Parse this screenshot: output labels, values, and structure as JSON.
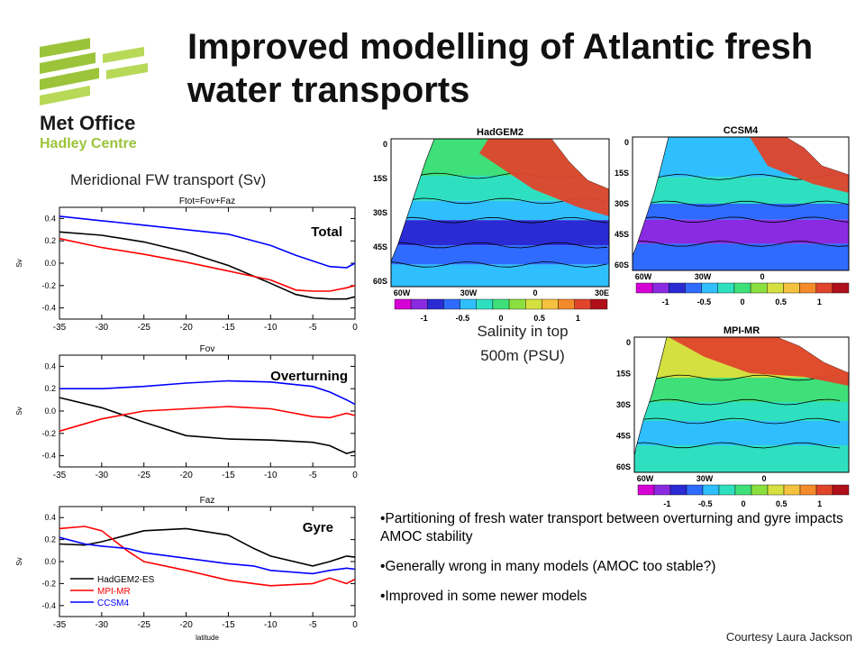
{
  "title": "Improved modelling of Atlantic fresh water transports",
  "logo": {
    "line1": "Met Office",
    "line2": "Hadley Centre",
    "colors": [
      "#9bc43a",
      "#b7d957"
    ]
  },
  "fw_caption": "Meridional FW transport (Sv)",
  "salinity_caption_1": "Salinity in top",
  "salinity_caption_2": "500m (PSU)",
  "bullets": [
    "•Partitioning of fresh water transport between overturning and gyre impacts AMOC stability",
    "•Generally wrong in many models (AMOC too stable?)",
    "•Improved in some newer models"
  ],
  "courtesy": "Courtesy Laura Jackson",
  "chart_data": [
    {
      "type": "line",
      "title": "Ftot=Fov+Faz",
      "panel_label": "Total",
      "ylabel": "Sv",
      "xlabel": "",
      "xlim": [
        -35,
        0
      ],
      "ylim": [
        -0.5,
        0.5
      ],
      "xticks": [
        -35,
        -30,
        -25,
        -20,
        -15,
        -10,
        -5,
        0
      ],
      "yticks": [
        -0.4,
        -0.2,
        0.0,
        0.2,
        0.4
      ],
      "ytick_labels": [
        "-0.4",
        "-0.2",
        "0.0",
        "0.2",
        "0.4"
      ],
      "x": [
        -35,
        -30,
        -25,
        -20,
        -15,
        -10,
        -7,
        -5,
        -3,
        -1,
        0
      ],
      "series": [
        {
          "name": "HadGEM2-ES",
          "color": "#000000",
          "values": [
            0.28,
            0.25,
            0.19,
            0.1,
            -0.02,
            -0.18,
            -0.28,
            -0.31,
            -0.32,
            -0.32,
            -0.3
          ]
        },
        {
          "name": "MPI-MR",
          "color": "#ff0000",
          "values": [
            0.22,
            0.14,
            0.08,
            0.01,
            -0.07,
            -0.15,
            -0.24,
            -0.25,
            -0.25,
            -0.22,
            -0.2
          ]
        },
        {
          "name": "CCSM4",
          "color": "#0000ff",
          "values": [
            0.42,
            0.38,
            0.34,
            0.3,
            0.26,
            0.16,
            0.07,
            0.02,
            -0.03,
            -0.04,
            0.0
          ]
        }
      ]
    },
    {
      "type": "line",
      "title": "Fov",
      "panel_label": "Overturning",
      "ylabel": "Sv",
      "xlabel": "",
      "xlim": [
        -35,
        0
      ],
      "ylim": [
        -0.5,
        0.5
      ],
      "xticks": [
        -35,
        -30,
        -25,
        -20,
        -15,
        -10,
        -5,
        0
      ],
      "yticks": [
        -0.4,
        -0.2,
        0.0,
        0.2,
        0.4
      ],
      "ytick_labels": [
        "-0.4",
        "-0.2",
        "0.0",
        "0.2",
        "0.4"
      ],
      "x": [
        -35,
        -30,
        -25,
        -20,
        -15,
        -10,
        -5,
        -3,
        -1,
        0
      ],
      "series": [
        {
          "name": "HadGEM2-ES",
          "color": "#000000",
          "values": [
            0.12,
            0.03,
            -0.1,
            -0.22,
            -0.25,
            -0.26,
            -0.28,
            -0.31,
            -0.38,
            -0.36
          ]
        },
        {
          "name": "MPI-MR",
          "color": "#ff0000",
          "values": [
            -0.18,
            -0.07,
            0.0,
            0.02,
            0.04,
            0.02,
            -0.05,
            -0.06,
            -0.02,
            -0.04
          ]
        },
        {
          "name": "CCSM4",
          "color": "#0000ff",
          "values": [
            0.2,
            0.2,
            0.22,
            0.25,
            0.27,
            0.26,
            0.22,
            0.17,
            0.1,
            0.06
          ]
        }
      ]
    },
    {
      "type": "line",
      "title": "Faz",
      "panel_label": "Gyre",
      "ylabel": "Sv",
      "xlabel": "latitude",
      "xlim": [
        -35,
        0
      ],
      "ylim": [
        -0.5,
        0.5
      ],
      "xticks": [
        -35,
        -30,
        -25,
        -20,
        -15,
        -10,
        -5,
        0
      ],
      "yticks": [
        -0.4,
        -0.2,
        0.0,
        0.2,
        0.4
      ],
      "ytick_labels": [
        "-0.4",
        "-0.2",
        "0.0",
        "0.2",
        "0.4"
      ],
      "x": [
        -35,
        -32,
        -30,
        -27,
        -25,
        -20,
        -15,
        -12,
        -10,
        -5,
        -3,
        -1,
        0
      ],
      "series": [
        {
          "name": "HadGEM2-ES",
          "color": "#000000",
          "values": [
            0.16,
            0.15,
            0.18,
            0.24,
            0.28,
            0.3,
            0.24,
            0.12,
            0.05,
            -0.04,
            0.0,
            0.05,
            0.04
          ]
        },
        {
          "name": "MPI-MR",
          "color": "#ff0000",
          "values": [
            0.3,
            0.32,
            0.28,
            0.1,
            0.0,
            -0.08,
            -0.17,
            -0.2,
            -0.22,
            -0.2,
            -0.15,
            -0.2,
            -0.16
          ]
        },
        {
          "name": "CCSM4",
          "color": "#0000ff",
          "values": [
            0.22,
            0.16,
            0.14,
            0.12,
            0.08,
            0.03,
            -0.02,
            -0.04,
            -0.08,
            -0.11,
            -0.08,
            -0.06,
            -0.07
          ]
        }
      ]
    }
  ],
  "maps": [
    {
      "title": "HadGEM2",
      "lat_labels": [
        "0",
        "15S",
        "30S",
        "45S",
        "60S"
      ],
      "lon_labels": [
        "60W",
        "30W",
        "0",
        "30E"
      ],
      "colorbar_labels": [
        "-1",
        "-0.5",
        "0",
        "0.5",
        "1"
      ]
    },
    {
      "title": "CCSM4",
      "lat_labels": [
        "0",
        "15S",
        "30S",
        "45S",
        "60S"
      ],
      "lon_labels": [
        "60W",
        "30W",
        "0"
      ],
      "colorbar_labels": [
        "-1",
        "-0.5",
        "0",
        "0.5",
        "1"
      ]
    },
    {
      "title": "MPI-MR",
      "lat_labels": [
        "0",
        "15S",
        "30S",
        "45S",
        "60S"
      ],
      "lon_labels": [
        "60W",
        "30W",
        "0"
      ],
      "colorbar_labels": [
        "-1",
        "-0.5",
        "0",
        "0.5",
        "1"
      ]
    }
  ],
  "colorbar_colors": [
    "#d400d4",
    "#8a2be2",
    "#2b2bd4",
    "#2f6bff",
    "#2fbfff",
    "#2fe0c0",
    "#3fe07a",
    "#8ae03f",
    "#d4e03f",
    "#f5c23f",
    "#f58a2b",
    "#e0442b",
    "#b0101a"
  ]
}
